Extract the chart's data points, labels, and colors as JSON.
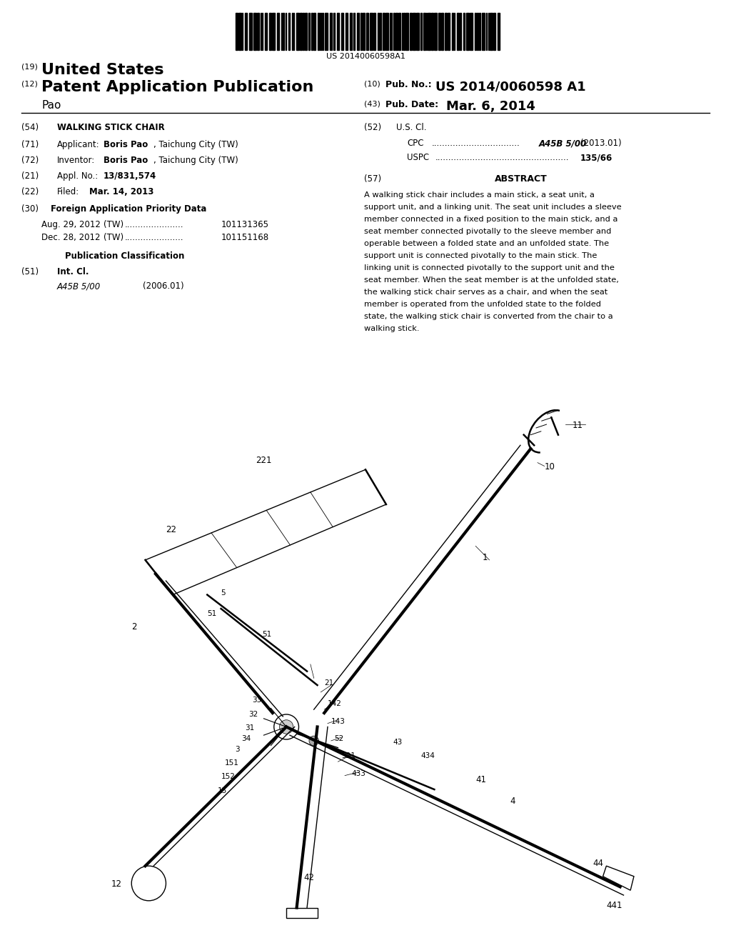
{
  "bg": "#ffffff",
  "barcode_num": "US 20140060598A1",
  "h19_label": "(19)",
  "h19_text": "United States",
  "h12_label": "(12)",
  "h12_text": "Patent Application Publication",
  "h_name": "Pao",
  "h10_label": "(10)",
  "h10_pub_label": "Pub. No.:",
  "h10_pub_val": "US 2014/0060598 A1",
  "h43_label": "(43)",
  "h43_date_label": "Pub. Date:",
  "h43_date_val": "Mar. 6, 2014",
  "f54_num": "(54)",
  "f54_val": "WALKING STICK CHAIR",
  "f71_num": "(71)",
  "f71_label": "Applicant:",
  "f71_bold": "Boris Pao",
  "f71_rest": ", Taichung City (TW)",
  "f72_num": "(72)",
  "f72_label": "Inventor:",
  "f72_bold": "Boris Pao",
  "f72_rest": ", Taichung City (TW)",
  "f21_num": "(21)",
  "f21_label": "Appl. No.:",
  "f21_val": "13/831,574",
  "f22_num": "(22)",
  "f22_label": "Filed:",
  "f22_val": "Mar. 14, 2013",
  "f30_num": "(30)",
  "f30_title": "Foreign Application Priority Data",
  "pri1_date": "Aug. 29, 2012",
  "pri1_ctry": "(TW)",
  "pri1_num": "101131365",
  "pri2_date": "Dec. 28, 2012",
  "pri2_ctry": "(TW)",
  "pri2_num": "101151168",
  "pub_class_title": "Publication Classification",
  "f51_num": "(51)",
  "f51_label": "Int. Cl.",
  "f51_val": "A45B 5/00",
  "f51_date": "(2006.01)",
  "f52_num": "(52)",
  "f52_label": "U.S. Cl.",
  "cpc_label": "CPC",
  "cpc_val": "A45B 5/00",
  "cpc_date": "(2013.01)",
  "uspc_label": "USPC",
  "uspc_val": "135/66",
  "abs_num": "(57)",
  "abs_title": "ABSTRACT",
  "abs_lines": [
    "A walking stick chair includes a main stick, a seat unit, a",
    "support unit, and a linking unit. The seat unit includes a sleeve",
    "member connected in a fixed position to the main stick, and a",
    "seat member connected pivotally to the sleeve member and",
    "operable between a folded state and an unfolded state. The",
    "support unit is connected pivotally to the main stick. The",
    "linking unit is connected pivotally to the support unit and the",
    "seat member. When the seat member is at the unfolded state,",
    "the walking stick chair serves as a chair, and when the seat",
    "member is operated from the unfolded state to the folded",
    "state, the walking stick chair is converted from the chair to a",
    "walking stick."
  ]
}
